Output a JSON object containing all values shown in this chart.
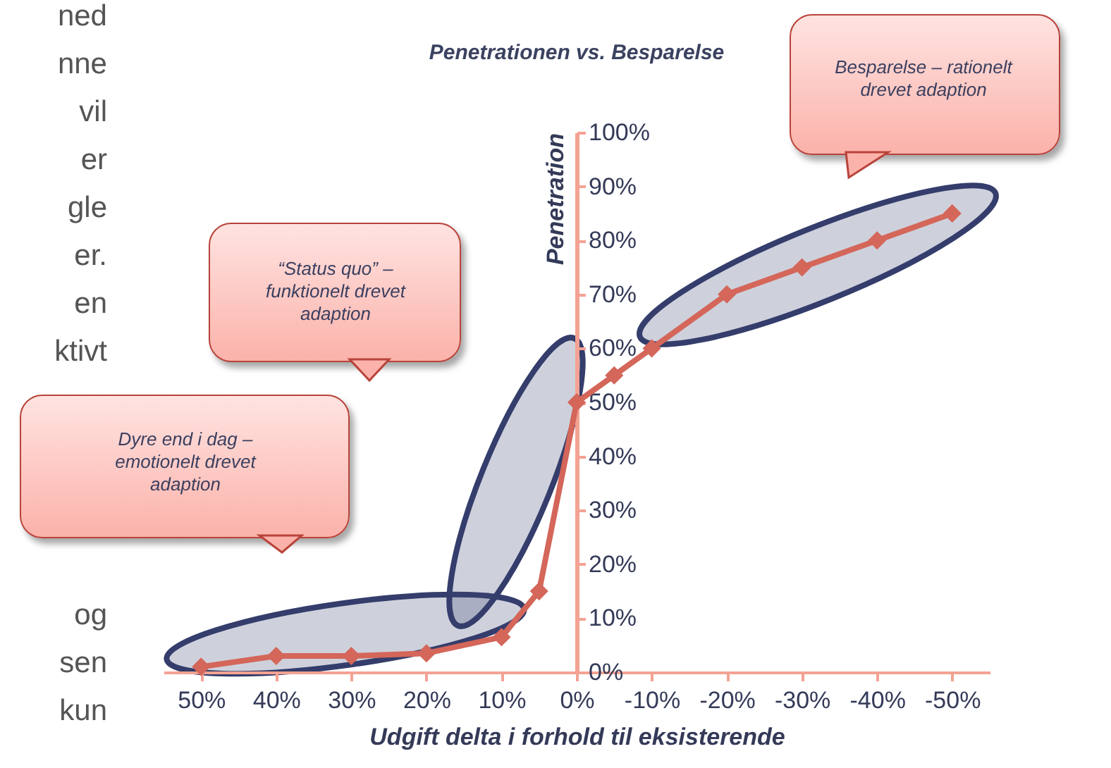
{
  "chart_data": {
    "type": "line",
    "title": "Penetrationen vs. Besparelse",
    "xlabel": "Udgift delta i forhold til eksisterende",
    "ylabel": "Penetration",
    "x": [
      50,
      40,
      30,
      20,
      10,
      5,
      0,
      -5,
      -10,
      -20,
      -30,
      -40,
      -50
    ],
    "series": [
      {
        "color": "#d4665a",
        "values": [
          1,
          3,
          3,
          3.5,
          6.5,
          15,
          50,
          55,
          60,
          70,
          75,
          80,
          85
        ]
      }
    ],
    "xlim": [
      55,
      -55
    ],
    "xticks": [
      {
        "value": 50,
        "label": "50%"
      },
      {
        "value": 40,
        "label": "40%"
      },
      {
        "value": 30,
        "label": "30%"
      },
      {
        "value": 20,
        "label": "20%"
      },
      {
        "value": 10,
        "label": "10%"
      },
      {
        "value": 0,
        "label": "0%"
      },
      {
        "value": -10,
        "label": "-10%"
      },
      {
        "value": -20,
        "label": "-20%"
      },
      {
        "value": -30,
        "label": "-30%"
      },
      {
        "value": -40,
        "label": "-40%"
      },
      {
        "value": -50,
        "label": "-50%"
      }
    ],
    "ylim": [
      0,
      100
    ],
    "yticks": [
      {
        "value": 0,
        "label": "0%"
      },
      {
        "value": 10,
        "label": "10%"
      },
      {
        "value": 20,
        "label": "20%"
      },
      {
        "value": 30,
        "label": "30%"
      },
      {
        "value": 40,
        "label": "40%"
      },
      {
        "value": 50,
        "label": "50%"
      },
      {
        "value": 60,
        "label": "60%"
      },
      {
        "value": 70,
        "label": "70%"
      },
      {
        "value": 80,
        "label": "80%"
      },
      {
        "value": 90,
        "label": "90%"
      },
      {
        "value": 100,
        "label": "100%"
      }
    ],
    "grid": false,
    "marker": "diamond",
    "line_style": "solid",
    "annotations": [
      "Besparelse – rationelt drevet adaption",
      "“Status quo” – funktionelt drevet adaption",
      "Dyre end i dag – emotionelt drevet adaption",
      "ned",
      "nne",
      "vil",
      "er",
      "gle",
      "er.",
      "en",
      "ktivt",
      "og",
      "sen",
      "kun"
    ]
  }
}
